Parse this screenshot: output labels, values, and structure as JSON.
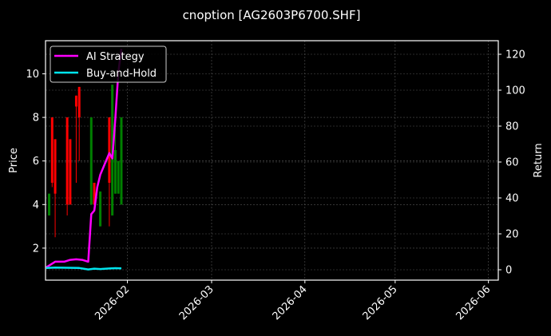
{
  "chart_data": {
    "type": "line",
    "title": "cnoption [AG2603P6700.SHF]",
    "xlabel": "",
    "ylabel_left": "Price",
    "ylabel_right": "Return",
    "x_ticks": [
      "2026-02",
      "2026-03",
      "2026-04",
      "2026-05",
      "2026-06"
    ],
    "y_left_ticks": [
      2,
      4,
      6,
      8,
      10
    ],
    "y_right_ticks": [
      0,
      20,
      40,
      60,
      80,
      100,
      120
    ],
    "ylim_left": [
      0.6,
      11.5
    ],
    "ylim_right": [
      -6,
      127
    ],
    "grid": true,
    "legend_position": "upper left",
    "legend": [
      "AI Strategy",
      "Buy-and-Hold"
    ],
    "candles": [
      {
        "date": "2026-01-06",
        "open": 3.5,
        "close": 4.5,
        "high": 4.5,
        "low": 3.5,
        "dir": "up"
      },
      {
        "date": "2026-01-07",
        "open": 8.0,
        "close": 5.0,
        "high": 8.0,
        "low": 4.8,
        "dir": "down"
      },
      {
        "date": "2026-01-08",
        "open": 7.0,
        "close": 4.5,
        "high": 7.0,
        "low": 2.5,
        "dir": "down"
      },
      {
        "date": "2026-01-12",
        "open": 8.0,
        "close": 4.0,
        "high": 8.0,
        "low": 3.5,
        "dir": "down"
      },
      {
        "date": "2026-01-13",
        "open": 7.0,
        "close": 4.0,
        "high": 7.0,
        "low": 4.0,
        "dir": "down"
      },
      {
        "date": "2026-01-15",
        "open": 9.0,
        "close": 8.5,
        "high": 9.0,
        "low": 5.0,
        "dir": "down"
      },
      {
        "date": "2026-01-16",
        "open": 9.4,
        "close": 8.0,
        "high": 9.4,
        "low": 6.0,
        "dir": "down"
      },
      {
        "date": "2026-01-20",
        "open": 4.0,
        "close": 8.0,
        "high": 8.0,
        "low": 4.0,
        "dir": "up"
      },
      {
        "date": "2026-01-21",
        "open": 5.0,
        "close": 4.0,
        "high": 5.0,
        "low": 4.0,
        "dir": "down"
      },
      {
        "date": "2026-01-23",
        "open": 3.0,
        "close": 4.6,
        "high": 4.6,
        "low": 3.0,
        "dir": "up"
      },
      {
        "date": "2026-01-26",
        "open": 8.0,
        "close": 5.0,
        "high": 8.0,
        "low": 3.0,
        "dir": "down"
      },
      {
        "date": "2026-01-27",
        "open": 3.5,
        "close": 9.5,
        "high": 9.5,
        "low": 3.5,
        "dir": "up"
      },
      {
        "date": "2026-01-28",
        "open": 4.5,
        "close": 6.5,
        "high": 7.5,
        "low": 4.5,
        "dir": "up"
      },
      {
        "date": "2026-01-29",
        "open": 4.5,
        "close": 6.0,
        "high": 6.0,
        "low": 4.5,
        "dir": "up"
      },
      {
        "date": "2026-01-30",
        "open": 4.0,
        "close": 8.0,
        "high": 8.0,
        "low": 4.0,
        "dir": "up"
      }
    ],
    "series": [
      {
        "name": "AI Strategy",
        "axis": "right",
        "color": "#ff00ff",
        "x": [
          "2026-01-05",
          "2026-01-08",
          "2026-01-11",
          "2026-01-13",
          "2026-01-15",
          "2026-01-17",
          "2026-01-19",
          "2026-01-20",
          "2026-01-21",
          "2026-01-22",
          "2026-01-23",
          "2026-01-26",
          "2026-01-27",
          "2026-01-28",
          "2026-01-29",
          "2026-01-30"
        ],
        "values": [
          1.3,
          4.5,
          4.5,
          5.5,
          5.8,
          5.5,
          4.5,
          31,
          33,
          46,
          53,
          65,
          62,
          84,
          110,
          123
        ]
      },
      {
        "name": "Buy-and-Hold",
        "axis": "right",
        "color": "#00e5ee",
        "x": [
          "2026-01-05",
          "2026-01-08",
          "2026-01-12",
          "2026-01-16",
          "2026-01-19",
          "2026-01-21",
          "2026-01-23",
          "2026-01-26",
          "2026-01-28",
          "2026-01-30"
        ],
        "values": [
          1.0,
          1.2,
          1.1,
          1.0,
          0.2,
          0.6,
          0.4,
          0.7,
          0.9,
          0.8
        ]
      }
    ]
  },
  "colors": {
    "background": "#000000",
    "up_candle": "#008000",
    "down_candle": "#ff0000",
    "grid": "#555555"
  }
}
